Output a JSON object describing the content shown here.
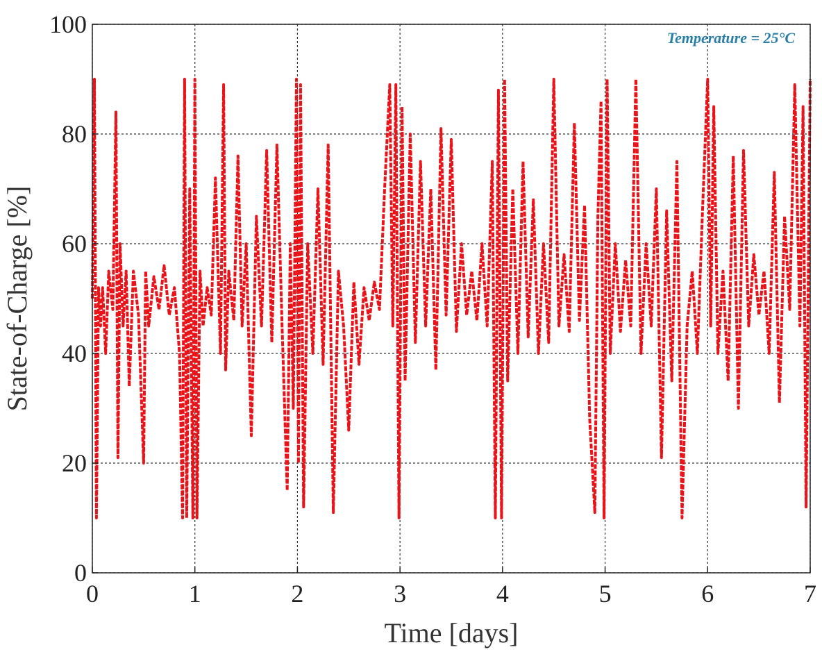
{
  "chart_data": {
    "type": "line",
    "xlabel": "Time [days]",
    "ylabel": "State-of-Charge [%]",
    "annotation": "Temperature = 25°C",
    "xlim": [
      0,
      7
    ],
    "xticks": [
      0,
      1,
      2,
      3,
      4,
      5,
      6,
      7
    ],
    "ylim": [
      0,
      100
    ],
    "yticks": [
      0,
      20,
      40,
      60,
      80,
      100
    ],
    "grid": true,
    "series": [
      {
        "color": "#e8141a",
        "x": [
          0,
          0.02,
          0.04,
          0.06,
          0.08,
          0.1,
          0.13,
          0.16,
          0.2,
          0.23,
          0.25,
          0.27,
          0.3,
          0.33,
          0.36,
          0.4,
          0.45,
          0.5,
          0.52,
          0.55,
          0.6,
          0.65,
          0.7,
          0.75,
          0.8,
          0.85,
          0.88,
          0.9,
          0.92,
          0.95,
          0.98,
          1.0,
          1.02,
          1.05,
          1.08,
          1.12,
          1.16,
          1.2,
          1.25,
          1.28,
          1.3,
          1.33,
          1.38,
          1.42,
          1.46,
          1.5,
          1.55,
          1.6,
          1.65,
          1.7,
          1.75,
          1.8,
          1.85,
          1.9,
          1.93,
          1.96,
          1.99,
          2.01,
          2.03,
          2.06,
          2.1,
          2.15,
          2.2,
          2.25,
          2.3,
          2.35,
          2.4,
          2.45,
          2.5,
          2.55,
          2.6,
          2.65,
          2.7,
          2.75,
          2.8,
          2.85,
          2.9,
          2.93,
          2.96,
          2.99,
          3.02,
          3.05,
          3.1,
          3.15,
          3.2,
          3.25,
          3.3,
          3.35,
          3.4,
          3.45,
          3.5,
          3.55,
          3.6,
          3.65,
          3.7,
          3.75,
          3.8,
          3.85,
          3.9,
          3.93,
          3.96,
          3.99,
          4.02,
          4.05,
          4.1,
          4.15,
          4.2,
          4.25,
          4.3,
          4.35,
          4.4,
          4.45,
          4.5,
          4.55,
          4.6,
          4.65,
          4.7,
          4.75,
          4.8,
          4.85,
          4.9,
          4.93,
          4.96,
          4.99,
          5.02,
          5.05,
          5.1,
          5.15,
          5.2,
          5.25,
          5.3,
          5.35,
          5.4,
          5.45,
          5.5,
          5.55,
          5.6,
          5.65,
          5.7,
          5.75,
          5.8,
          5.85,
          5.9,
          5.95,
          6.0,
          6.03,
          6.06,
          6.1,
          6.15,
          6.2,
          6.25,
          6.3,
          6.35,
          6.4,
          6.45,
          6.5,
          6.55,
          6.6,
          6.65,
          6.7,
          6.75,
          6.8,
          6.85,
          6.9,
          6.93,
          6.96,
          7.0
        ],
        "values": [
          50,
          90,
          10,
          52,
          45,
          52,
          40,
          55,
          48,
          84,
          21,
          60,
          45,
          55,
          34,
          55,
          47,
          20,
          55,
          45,
          54,
          48,
          56,
          47,
          52,
          40,
          10,
          90,
          10,
          70,
          10,
          90,
          10,
          55,
          45,
          52,
          47,
          72,
          40,
          89,
          37,
          55,
          46,
          76,
          45,
          60,
          25,
          65,
          45,
          77,
          42,
          78,
          45,
          15,
          60,
          30,
          90,
          20,
          89,
          12,
          60,
          40,
          70,
          38,
          78,
          11,
          55,
          45,
          26,
          53,
          38,
          52,
          46,
          53,
          48,
          70,
          89,
          45,
          89,
          10,
          85,
          35,
          80,
          42,
          75,
          45,
          70,
          37,
          81,
          47,
          79,
          44,
          60,
          47,
          55,
          46,
          60,
          45,
          75,
          10,
          88,
          10,
          90,
          35,
          70,
          40,
          75,
          43,
          68,
          40,
          60,
          42,
          90,
          45,
          58,
          44,
          82,
          46,
          67,
          28,
          11,
          65,
          86,
          10,
          90,
          40,
          60,
          44,
          57,
          45,
          90,
          40,
          60,
          45,
          70,
          21,
          66,
          35,
          75,
          10,
          45,
          55,
          40,
          66,
          90,
          45,
          85,
          40,
          55,
          35,
          76,
          30,
          77,
          45,
          58,
          47,
          55,
          40,
          73,
          31,
          65,
          48,
          89,
          45,
          85,
          12,
          90
        ]
      }
    ]
  }
}
